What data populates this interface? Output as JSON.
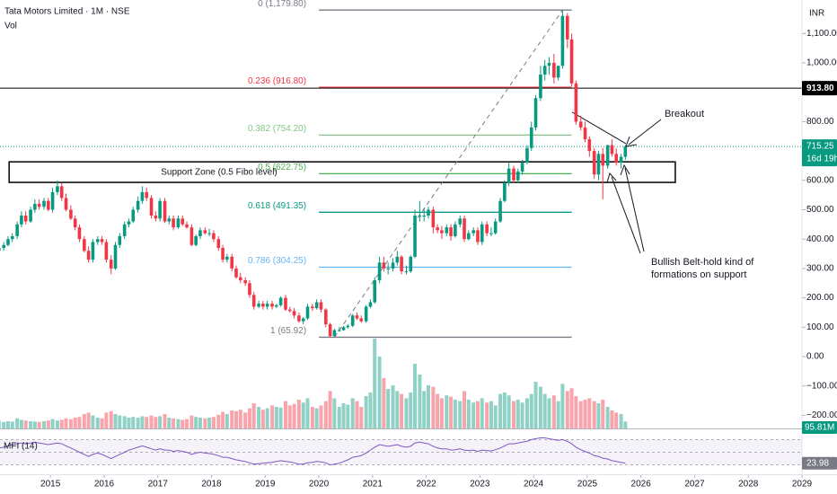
{
  "chart_data": {
    "type": "candlestick",
    "title": "Tata Motors Limited · 1M · NSE",
    "currency": "INR",
    "up_color": "#089981",
    "down_color": "#f23645",
    "x": [
      2014.04,
      2014.13,
      2014.21,
      2014.29,
      2014.38,
      2014.46,
      2014.54,
      2014.63,
      2014.71,
      2014.79,
      2014.88,
      2014.96,
      2015.04,
      2015.13,
      2015.21,
      2015.29,
      2015.38,
      2015.46,
      2015.54,
      2015.63,
      2015.71,
      2015.79,
      2015.88,
      2015.96,
      2016.04,
      2016.13,
      2016.21,
      2016.29,
      2016.38,
      2016.46,
      2016.54,
      2016.63,
      2016.71,
      2016.79,
      2016.88,
      2016.96,
      2017.04,
      2017.13,
      2017.21,
      2017.29,
      2017.38,
      2017.46,
      2017.54,
      2017.63,
      2017.71,
      2017.79,
      2017.88,
      2017.96,
      2018.04,
      2018.13,
      2018.21,
      2018.29,
      2018.38,
      2018.46,
      2018.54,
      2018.63,
      2018.71,
      2018.79,
      2018.88,
      2018.96,
      2019.04,
      2019.13,
      2019.21,
      2019.29,
      2019.38,
      2019.46,
      2019.54,
      2019.63,
      2019.71,
      2019.79,
      2019.88,
      2019.96,
      2020.04,
      2020.13,
      2020.21,
      2020.29,
      2020.38,
      2020.46,
      2020.54,
      2020.63,
      2020.71,
      2020.79,
      2020.88,
      2020.96,
      2021.04,
      2021.13,
      2021.21,
      2021.29,
      2021.38,
      2021.46,
      2021.54,
      2021.63,
      2021.71,
      2021.79,
      2021.88,
      2021.96,
      2022.04,
      2022.13,
      2022.21,
      2022.29,
      2022.38,
      2022.46,
      2022.54,
      2022.63,
      2022.71,
      2022.79,
      2022.88,
      2022.96,
      2023.04,
      2023.13,
      2023.21,
      2023.29,
      2023.38,
      2023.46,
      2023.54,
      2023.63,
      2023.71,
      2023.79,
      2023.88,
      2023.96,
      2024.04,
      2024.13,
      2024.21,
      2024.29,
      2024.38,
      2024.46,
      2024.54,
      2024.63,
      2024.71,
      2024.79,
      2024.88,
      2024.96,
      2025.04,
      2025.13,
      2025.21,
      2025.29,
      2025.38,
      2025.46,
      2025.54,
      2025.63,
      2025.71
    ],
    "open": [
      360,
      370,
      380,
      400,
      410,
      450,
      480,
      460,
      500,
      520,
      510,
      530,
      500,
      560,
      580,
      540,
      500,
      470,
      440,
      400,
      360,
      330,
      390,
      400,
      390,
      330,
      300,
      380,
      410,
      450,
      460,
      500,
      530,
      560,
      540,
      480,
      470,
      530,
      460,
      470,
      440,
      470,
      450,
      440,
      380,
      410,
      430,
      420,
      420,
      400,
      370,
      330,
      340,
      300,
      270,
      260,
      250,
      210,
      170,
      180,
      170,
      180,
      170,
      175,
      200,
      160,
      155,
      140,
      120,
      130,
      170,
      165,
      185,
      160,
      110,
      70,
      90,
      90,
      100,
      105,
      140,
      130,
      120,
      170,
      185,
      260,
      320,
      300,
      300,
      320,
      340,
      290,
      290,
      340,
      480,
      480,
      480,
      500,
      440,
      430,
      420,
      440,
      410,
      450,
      470,
      400,
      420,
      430,
      390,
      450,
      420,
      420,
      460,
      530,
      590,
      640,
      600,
      630,
      660,
      710,
      780,
      880,
      960,
      990,
      1000,
      950,
      990,
      1160,
      1080,
      930,
      800,
      780,
      740,
      700,
      620,
      690,
      650,
      720,
      690,
      660,
      680
    ],
    "high": [
      385,
      390,
      410,
      420,
      460,
      495,
      495,
      510,
      535,
      535,
      540,
      540,
      575,
      600,
      590,
      555,
      515,
      480,
      450,
      410,
      375,
      400,
      410,
      410,
      400,
      345,
      390,
      420,
      460,
      470,
      510,
      545,
      580,
      575,
      550,
      495,
      540,
      540,
      480,
      480,
      480,
      480,
      460,
      450,
      415,
      440,
      440,
      435,
      430,
      410,
      380,
      350,
      350,
      310,
      285,
      270,
      260,
      220,
      190,
      190,
      190,
      190,
      180,
      205,
      210,
      170,
      165,
      150,
      135,
      180,
      180,
      195,
      195,
      165,
      115,
      95,
      100,
      105,
      110,
      145,
      150,
      140,
      175,
      195,
      270,
      340,
      340,
      320,
      335,
      360,
      345,
      310,
      345,
      500,
      530,
      505,
      510,
      510,
      450,
      445,
      450,
      450,
      460,
      480,
      480,
      430,
      440,
      440,
      460,
      460,
      440,
      470,
      540,
      600,
      660,
      650,
      640,
      670,
      720,
      800,
      890,
      990,
      1010,
      1020,
      1030,
      990,
      1179.8,
      1170,
      1100,
      940,
      820,
      800,
      750,
      710,
      700,
      710,
      720,
      740,
      710,
      690,
      720
    ],
    "low": [
      350,
      360,
      375,
      390,
      400,
      440,
      450,
      455,
      490,
      500,
      500,
      495,
      490,
      550,
      530,
      495,
      465,
      430,
      390,
      355,
      320,
      320,
      380,
      380,
      320,
      280,
      295,
      370,
      400,
      440,
      455,
      490,
      520,
      530,
      470,
      460,
      460,
      455,
      450,
      430,
      435,
      445,
      435,
      375,
      375,
      400,
      415,
      410,
      390,
      360,
      320,
      320,
      290,
      265,
      250,
      240,
      200,
      160,
      165,
      160,
      160,
      160,
      165,
      170,
      155,
      150,
      130,
      115,
      110,
      125,
      155,
      160,
      150,
      100,
      65.92,
      68,
      85,
      88,
      95,
      100,
      125,
      115,
      115,
      165,
      180,
      250,
      290,
      280,
      290,
      310,
      280,
      280,
      285,
      335,
      460,
      460,
      470,
      420,
      420,
      400,
      410,
      395,
      405,
      440,
      390,
      395,
      410,
      380,
      380,
      410,
      410,
      415,
      455,
      525,
      580,
      590,
      590,
      620,
      655,
      700,
      770,
      870,
      940,
      960,
      930,
      940,
      980,
      1050,
      920,
      790,
      770,
      730,
      680,
      605,
      600,
      535,
      640,
      680,
      650,
      640,
      670
    ],
    "close": [
      370,
      380,
      400,
      410,
      450,
      480,
      460,
      500,
      520,
      510,
      530,
      500,
      560,
      580,
      540,
      500,
      470,
      440,
      400,
      360,
      330,
      390,
      400,
      390,
      330,
      300,
      380,
      410,
      450,
      460,
      500,
      530,
      560,
      540,
      480,
      470,
      530,
      460,
      470,
      440,
      470,
      450,
      440,
      380,
      410,
      430,
      420,
      420,
      400,
      370,
      330,
      340,
      300,
      270,
      260,
      250,
      210,
      170,
      180,
      170,
      180,
      170,
      175,
      200,
      160,
      155,
      140,
      120,
      130,
      170,
      165,
      185,
      160,
      110,
      70,
      90,
      90,
      100,
      105,
      140,
      130,
      120,
      170,
      185,
      260,
      320,
      300,
      300,
      320,
      340,
      290,
      290,
      340,
      480,
      480,
      480,
      500,
      440,
      430,
      420,
      440,
      410,
      450,
      470,
      400,
      420,
      430,
      390,
      450,
      420,
      420,
      460,
      530,
      590,
      640,
      600,
      630,
      660,
      710,
      780,
      880,
      960,
      990,
      1000,
      950,
      990,
      1160,
      1080,
      930,
      800,
      780,
      740,
      700,
      620,
      690,
      650,
      720,
      690,
      660,
      680,
      715.25
    ],
    "xlim": [
      2014.06,
      2029.0
    ],
    "xticks": [
      2015,
      2016,
      2017,
      2018,
      2019,
      2020,
      2021,
      2022,
      2023,
      2024,
      2025,
      2026,
      2027,
      2028,
      2029
    ],
    "ylim": [
      -238.5,
      1214
    ],
    "yticks": [
      {
        "value": 1100,
        "label": "1,100.00"
      },
      {
        "value": 1000,
        "label": "1,000.00"
      },
      {
        "value": 800,
        "label": "800.00"
      },
      {
        "value": 600,
        "label": "600.00"
      },
      {
        "value": 500,
        "label": "500.00"
      },
      {
        "value": 400,
        "label": "400.00"
      },
      {
        "value": 300,
        "label": "300.00"
      },
      {
        "value": 200,
        "label": "200.00"
      },
      {
        "value": 100,
        "label": "100.00"
      },
      {
        "value": 0,
        "label": "0.00"
      },
      {
        "value": -100,
        "label": "−100.00"
      },
      {
        "value": -200,
        "label": "−200.00"
      }
    ],
    "volume": {
      "name": "Vol",
      "up_color": "rgba(8,153,129,0.45)",
      "down_color": "rgba(242,54,69,0.45)",
      "last_label": "95.81M",
      "values": [
        110,
        90,
        100,
        95,
        140,
        120,
        110,
        100,
        95,
        90,
        100,
        110,
        130,
        110,
        120,
        140,
        130,
        150,
        160,
        200,
        220,
        180,
        150,
        140,
        220,
        240,
        200,
        180,
        170,
        150,
        160,
        150,
        170,
        160,
        180,
        160,
        170,
        200,
        150,
        140,
        130,
        120,
        130,
        180,
        160,
        150,
        140,
        150,
        160,
        190,
        230,
        200,
        250,
        240,
        260,
        220,
        280,
        350,
        300,
        260,
        280,
        320,
        300,
        290,
        380,
        320,
        340,
        400,
        360,
        420,
        300,
        280,
        320,
        380,
        520,
        420,
        300,
        350,
        330,
        420,
        380,
        300,
        450,
        500,
        1250,
        1000,
        700,
        550,
        600,
        520,
        480,
        420,
        500,
        900,
        750,
        520,
        600,
        580,
        480,
        420,
        460,
        440,
        400,
        380,
        520,
        400,
        360,
        380,
        420,
        360,
        380,
        320,
        480,
        500,
        460,
        380,
        400,
        360,
        420,
        480,
        650,
        580,
        480,
        420,
        460,
        380,
        620,
        520,
        560,
        450,
        380,
        400,
        420,
        380,
        350,
        400,
        300,
        250,
        220,
        200,
        95.81
      ]
    },
    "indicator": {
      "name": "MFI (14)",
      "color": "#7e57c2",
      "ylim": [
        0,
        100
      ],
      "levels": [
        20,
        50,
        80
      ],
      "values": [
        60,
        62,
        65,
        68,
        70,
        72,
        70,
        72,
        74,
        72,
        70,
        68,
        70,
        72,
        70,
        65,
        60,
        55,
        50,
        45,
        40,
        45,
        48,
        45,
        40,
        35,
        40,
        45,
        50,
        55,
        58,
        62,
        65,
        62,
        58,
        55,
        58,
        55,
        55,
        52,
        54,
        52,
        50,
        45,
        48,
        50,
        48,
        47,
        45,
        42,
        38,
        38,
        35,
        32,
        30,
        28,
        25,
        22,
        23,
        24,
        25,
        26,
        28,
        30,
        28,
        27,
        25,
        22,
        22,
        25,
        26,
        28,
        27,
        25,
        20,
        22,
        24,
        28,
        32,
        38,
        40,
        42,
        48,
        55,
        62,
        68,
        66,
        64,
        66,
        68,
        64,
        62,
        64,
        72,
        74,
        72,
        70,
        64,
        60,
        58,
        58,
        55,
        56,
        58,
        55,
        54,
        55,
        52,
        55,
        54,
        53,
        56,
        60,
        65,
        70,
        70,
        72,
        74,
        76,
        80,
        82,
        84,
        84,
        82,
        80,
        78,
        80,
        76,
        70,
        62,
        56,
        52,
        48,
        42,
        40,
        36,
        34,
        30,
        28,
        26,
        23.98
      ]
    },
    "fibonacci": {
      "x_range": [
        2020.0,
        2024.71
      ],
      "levels": [
        {
          "label": "0 (1,179.80)",
          "value": 1179.8,
          "color": "#787b86"
        },
        {
          "label": "0.236 (916.80)",
          "value": 916.8,
          "color": "#f23645"
        },
        {
          "label": "0.382 (754.20)",
          "value": 754.2,
          "color": "#81c784"
        },
        {
          "label": "0.5 (622.75)",
          "value": 622.75,
          "color": "#4caf50"
        },
        {
          "label": "0.618 (491.35)",
          "value": 491.35,
          "color": "#089981"
        },
        {
          "label": "0.786 (304.25)",
          "value": 304.25,
          "color": "#64b5f6"
        },
        {
          "label": "1 (65.92)",
          "value": 65.92,
          "color": "#787b86"
        }
      ]
    },
    "horizontal_line": {
      "value": 913.8,
      "label": "913.80",
      "color": "#000000"
    },
    "last_price": {
      "value": 715.25,
      "label": "715.25",
      "countdown": "16d 19h",
      "color": "#089981"
    },
    "support_zone": {
      "label": "Support Zone (0.5 Fibo level)",
      "top": 663,
      "bottom": 593,
      "x_range": [
        2014.23,
        2026.64
      ]
    },
    "trendlines": [
      {
        "x": [
          2020.29,
          2024.54
        ],
        "y": [
          65.92,
          1179.8
        ],
        "color": "#787b86",
        "dashed": true
      },
      {
        "x": [
          2024.72,
          2025.72
        ],
        "y": [
          832,
          725
        ],
        "color": "#131722",
        "dashed": false
      }
    ],
    "annotations": [
      {
        "lines": [
          "Breakout"
        ]
      },
      {
        "lines": [
          "Bullish Belt-hold kind of",
          "formations on support"
        ]
      }
    ]
  }
}
